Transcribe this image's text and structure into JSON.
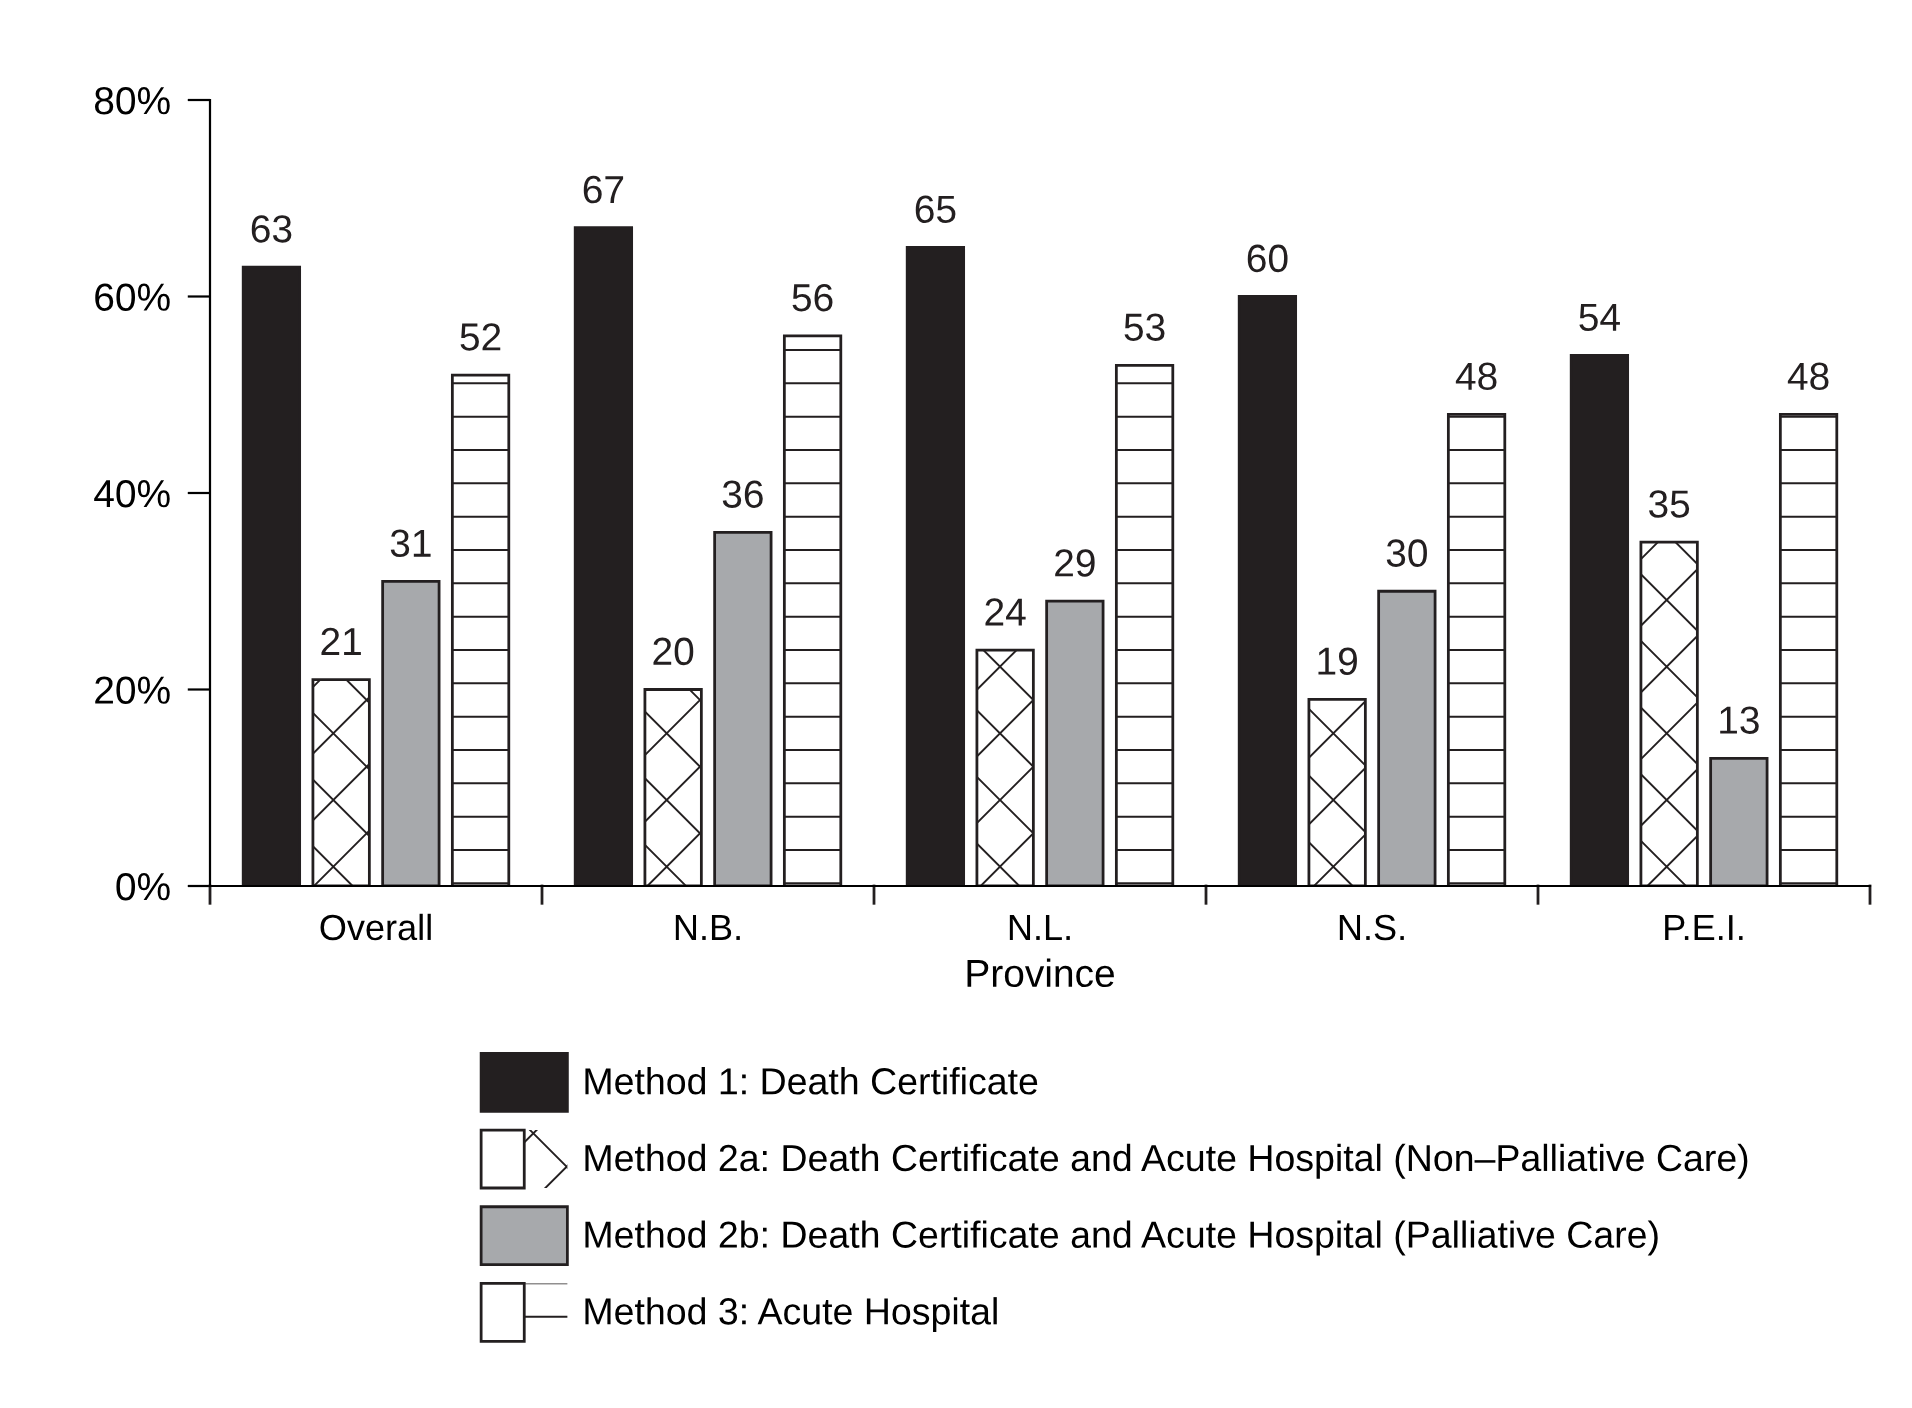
{
  "chart_data": {
    "type": "bar",
    "xlabel": "Province",
    "categories": [
      "Overall",
      "N.B.",
      "N.L.",
      "N.S.",
      "P.E.I."
    ],
    "series": [
      {
        "name": "Method 1: Death Certificate",
        "color": "#231f20",
        "values": [
          63,
          67,
          65,
          60,
          54
        ]
      },
      {
        "name": "Method 2a: Death Certificate and Acute Hospital (Non–Palliative Care)",
        "color": "#ffffff",
        "values": [
          21,
          20,
          24,
          19,
          35
        ]
      },
      {
        "name": "Method 2b: Death Certificate and Acute Hospital (Palliative Care)",
        "color": "#a7a9ac",
        "values": [
          31,
          36,
          29,
          30,
          13
        ]
      },
      {
        "name": "Method 3: Acute Hospital",
        "color": "#ffffff",
        "values": [
          52,
          56,
          53,
          48,
          48
        ]
      }
    ],
    "ylim": [
      0,
      80
    ],
    "yticks": [
      {
        "value": 0,
        "label": "0%"
      },
      {
        "value": 20,
        "label": "20%"
      },
      {
        "value": 40,
        "label": "40%"
      },
      {
        "value": 60,
        "label": "60%"
      },
      {
        "value": 80,
        "label": "80%"
      }
    ],
    "data_labels": true,
    "grid": false,
    "legend": "bottom"
  }
}
